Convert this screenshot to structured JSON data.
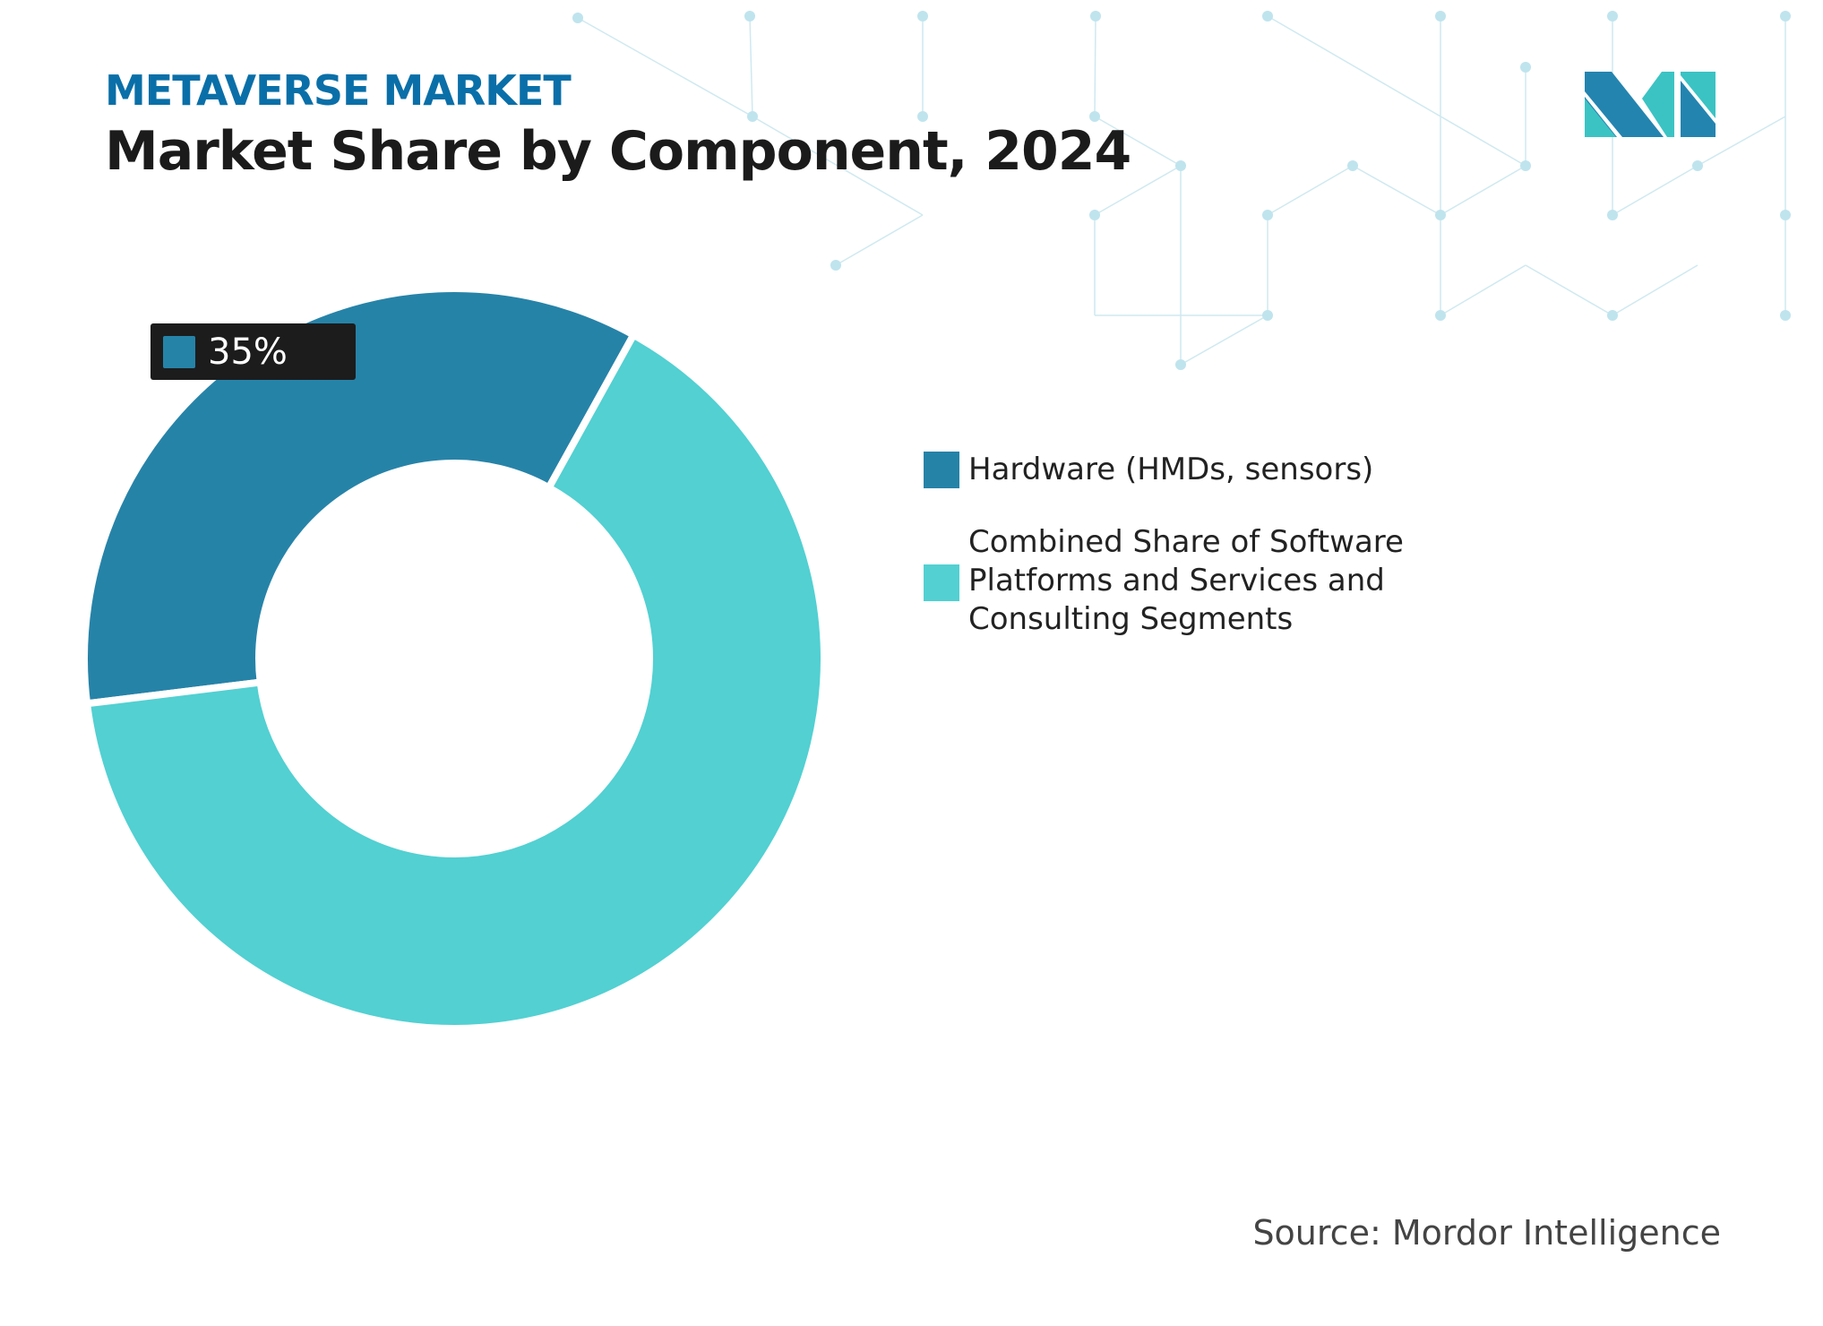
{
  "header": {
    "subtitle": "METAVERSE MARKET",
    "title": "Market Share by Component, 2024"
  },
  "source": "Source: Mordor Intelligence",
  "logo": {
    "text": "MI",
    "colors": [
      "#2484b0",
      "#3bc3c4"
    ]
  },
  "chart_data": {
    "type": "pie",
    "subtype": "donut",
    "title": "Market Share by Component, 2024",
    "categories": [
      "Hardware (HMDs, sensors)",
      "Combined Share of Software Platforms and Services and Consulting Segments"
    ],
    "values": [
      35,
      65
    ],
    "unit": "%",
    "colors": [
      "#2683a8",
      "#52d0d2"
    ],
    "data_labels": [
      {
        "category": "Hardware (HMDs, sensors)",
        "text": "35%"
      }
    ],
    "legend_placement": "right"
  }
}
